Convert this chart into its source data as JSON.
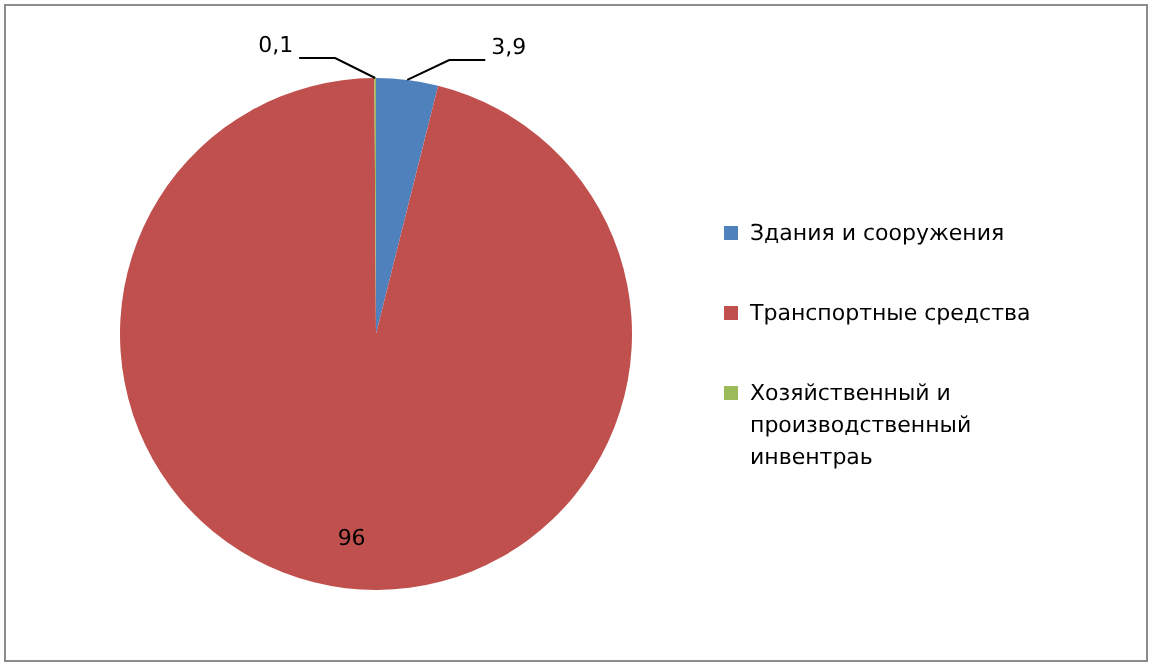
{
  "chart_data": {
    "type": "pie",
    "categories": [
      "Здания и сооружения",
      "Транспортные средства",
      "Хозяйственный и производственный инвентраь"
    ],
    "values": [
      3.9,
      96,
      0.1
    ],
    "colors": [
      "#4f81bd",
      "#c0504d",
      "#9bbb59"
    ],
    "value_labels": [
      "3,9",
      "96",
      "0,1"
    ],
    "legend": "right"
  }
}
